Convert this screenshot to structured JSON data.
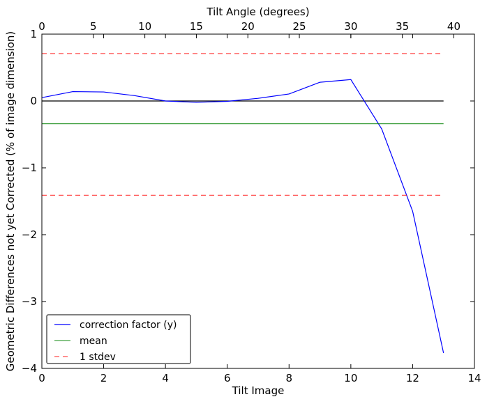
{
  "chart_data": {
    "type": "line",
    "xlabel": "Tilt Image",
    "x2label": "Tilt Angle (degrees)",
    "ylabel": "Geometric Differences not yet Corrected (% of image dimension)",
    "xlim": [
      0,
      14
    ],
    "x2lim": [
      0,
      42
    ],
    "ylim": [
      -4,
      1
    ],
    "x_ticks": [
      "0",
      "2",
      "4",
      "6",
      "8",
      "10",
      "12",
      "14"
    ],
    "x2_ticks": [
      "0",
      "5",
      "10",
      "15",
      "20",
      "25",
      "30",
      "35",
      "40"
    ],
    "y_ticks": [
      "1",
      "0",
      "−1",
      "−2",
      "−3",
      "−4"
    ],
    "grid": false,
    "legend_position": "lower-left",
    "zero_line": {
      "y": 0,
      "color": "#000000"
    },
    "series": [
      {
        "name": "correction factor (y)",
        "color": "#0000ff",
        "style": "solid",
        "x": [
          0,
          1,
          2,
          3,
          4,
          5,
          6,
          7,
          8,
          9,
          10,
          11,
          12,
          13
        ],
        "y": [
          0.05,
          0.14,
          0.135,
          0.08,
          0.0,
          -0.02,
          -0.005,
          0.04,
          0.105,
          0.28,
          0.32,
          -0.42,
          -1.65,
          -3.77
        ]
      },
      {
        "name": "mean",
        "color": "#008000",
        "style": "solid",
        "x": [
          0,
          13
        ],
        "y": [
          -0.34,
          -0.34
        ]
      },
      {
        "name": "1 stdev",
        "color": "#ff0000",
        "style": "dashed",
        "x": [
          0,
          13
        ],
        "y": [
          0.71,
          0.71
        ]
      },
      {
        "name": "",
        "color": "#ff0000",
        "style": "dashed",
        "x": [
          0,
          13
        ],
        "y": [
          -1.41,
          -1.41
        ]
      }
    ]
  }
}
